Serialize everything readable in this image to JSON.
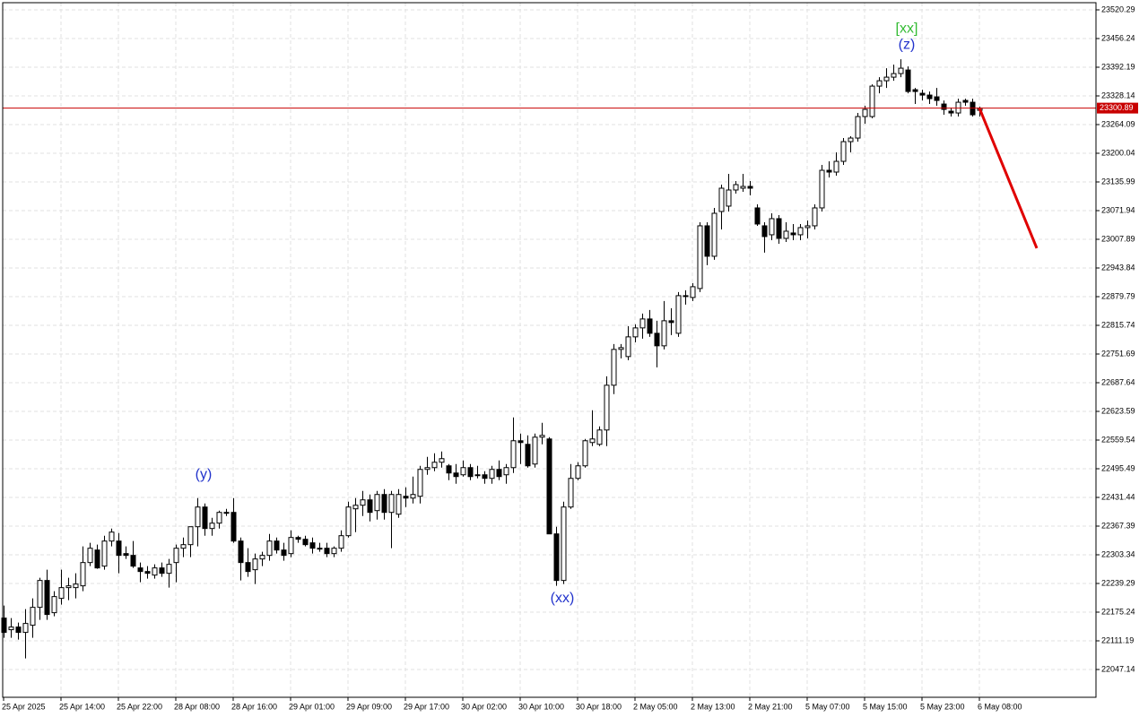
{
  "chart_data": {
    "type": "candlestick",
    "categories": [
      "25 Apr 2025",
      null,
      null,
      null,
      null,
      null,
      null,
      null,
      "25 Apr 14:00",
      null,
      null,
      null,
      null,
      null,
      null,
      null,
      "25 Apr 22:00",
      null,
      null,
      null,
      null,
      null,
      null,
      null,
      "28 Apr 08:00",
      null,
      null,
      null,
      null,
      null,
      null,
      null,
      "28 Apr 16:00",
      null,
      null,
      null,
      null,
      null,
      null,
      null,
      "29 Apr 01:00",
      null,
      null,
      null,
      null,
      null,
      null,
      null,
      "29 Apr 09:00",
      null,
      null,
      null,
      null,
      null,
      null,
      null,
      "29 Apr 17:00",
      null,
      null,
      null,
      null,
      null,
      null,
      null,
      "30 Apr 02:00",
      null,
      null,
      null,
      null,
      null,
      null,
      null,
      "30 Apr 10:00",
      null,
      null,
      null,
      null,
      null,
      null,
      null,
      "30 Apr 18:00",
      null,
      null,
      null,
      null,
      null,
      null,
      null,
      "2 May 05:00",
      null,
      null,
      null,
      null,
      null,
      null,
      null,
      "2 May 13:00",
      null,
      null,
      null,
      null,
      null,
      null,
      null,
      "2 May 21:00",
      null,
      null,
      null,
      null,
      null,
      null,
      null,
      "5 May 07:00",
      null,
      null,
      null,
      null,
      null,
      null,
      null,
      "5 May 15:00",
      null,
      null,
      null,
      null,
      null,
      null,
      null,
      "5 May 23:00",
      null,
      null,
      null,
      null,
      null,
      null,
      null,
      "6 May 08:00"
    ],
    "open": [
      22162,
      22136,
      22142,
      22130,
      22146,
      22186,
      22246,
      22174,
      22206,
      22230,
      22230,
      22234,
      22286,
      22314,
      22278,
      22334,
      22334,
      22306,
      22302,
      22274,
      22266,
      22258,
      22274,
      22262,
      22286,
      22318,
      22326,
      22366,
      22410,
      22362,
      22374,
      22398,
      22398,
      22334,
      22286,
      22270,
      22294,
      22302,
      22334,
      22314,
      22306,
      22342,
      22338,
      22330,
      22318,
      22318,
      22306,
      22318,
      22346,
      22406,
      22414,
      22426,
      22402,
      22438,
      22398,
      22394,
      22434,
      22430,
      22434,
      22494,
      22498,
      22510,
      22502,
      22486,
      22482,
      22498,
      22482,
      22482,
      22474,
      22494,
      22482,
      22498,
      22558,
      22550,
      22506,
      22566,
      22562,
      22350,
      22246,
      22410,
      22474,
      22502,
      22554,
      22550,
      22582,
      22682,
      22762,
      22746,
      22790,
      22810,
      22830,
      22798,
      22770,
      22826,
      22798,
      22882,
      22878,
      22898,
      23038,
      22970,
      23070,
      23082,
      23118,
      23122,
      23126,
      23078,
      23038,
      23018,
      23054,
      23010,
      23022,
      23018,
      23034,
      23038,
      23078,
      23162,
      23158,
      23182,
      23226,
      23234,
      23282,
      23282,
      23350,
      23362,
      23370,
      23378,
      23386,
      23342,
      23334,
      23330,
      23326,
      23310,
      23294,
      23290,
      23318,
      23314,
      23296
    ],
    "high": [
      22190,
      22162,
      22152,
      22182,
      22206,
      22252,
      22270,
      22222,
      22270,
      22252,
      22262,
      22322,
      22330,
      22326,
      22346,
      22362,
      22352,
      22322,
      22334,
      22286,
      22278,
      22282,
      22286,
      22294,
      22326,
      22342,
      22366,
      22430,
      22418,
      22386,
      22402,
      22406,
      22430,
      22342,
      22318,
      22306,
      22310,
      22350,
      22342,
      22330,
      22358,
      22346,
      22346,
      22342,
      22330,
      22330,
      22322,
      22358,
      22422,
      22430,
      22446,
      22438,
      22446,
      22450,
      22446,
      22450,
      22454,
      22478,
      22502,
      22522,
      22530,
      22534,
      22506,
      22506,
      22514,
      22506,
      22502,
      22490,
      22502,
      22514,
      22506,
      22610,
      22574,
      22570,
      22574,
      22598,
      22566,
      22366,
      22422,
      22506,
      22510,
      22562,
      22626,
      22590,
      22702,
      22774,
      22774,
      22814,
      22818,
      22842,
      22850,
      22826,
      22870,
      22854,
      22890,
      22894,
      22910,
      23046,
      23046,
      23078,
      23130,
      23154,
      23138,
      23154,
      23138,
      23086,
      23046,
      23066,
      23062,
      23046,
      23042,
      23042,
      23050,
      23086,
      23174,
      23182,
      23202,
      23234,
      23238,
      23290,
      23306,
      23354,
      23370,
      23390,
      23398,
      23410,
      23394,
      23346,
      23342,
      23338,
      23346,
      23318,
      23302,
      23322,
      23322,
      23322,
      23304
    ],
    "low": [
      22118,
      22118,
      22114,
      22072,
      22118,
      22158,
      22158,
      22166,
      22192,
      22202,
      22206,
      22222,
      22278,
      22272,
      22270,
      22322,
      22262,
      22294,
      22274,
      22242,
      22250,
      22250,
      22254,
      22230,
      22242,
      22298,
      22298,
      22322,
      22346,
      22346,
      22362,
      22390,
      22330,
      22246,
      22254,
      22238,
      22278,
      22290,
      22306,
      22290,
      22298,
      22330,
      22322,
      22306,
      22310,
      22298,
      22298,
      22310,
      22342,
      22354,
      22390,
      22378,
      22382,
      22382,
      22318,
      22386,
      22410,
      22418,
      22418,
      22482,
      22490,
      22498,
      22470,
      22462,
      22478,
      22470,
      22474,
      22462,
      22462,
      22470,
      22462,
      22486,
      22506,
      22498,
      22498,
      22550,
      22350,
      22234,
      22238,
      22406,
      22470,
      22498,
      22546,
      22546,
      22546,
      22662,
      22742,
      22738,
      22778,
      22786,
      22790,
      22722,
      22762,
      22794,
      22790,
      22862,
      22870,
      22890,
      22950,
      22962,
      23030,
      23070,
      23110,
      23114,
      23106,
      23038,
      22978,
      23006,
      22998,
      23002,
      23006,
      23006,
      23010,
      23030,
      23070,
      23146,
      23150,
      23174,
      23202,
      23226,
      23266,
      23278,
      23334,
      23346,
      23362,
      23370,
      23334,
      23310,
      23318,
      23310,
      23306,
      23286,
      23282,
      23282,
      23306,
      23282,
      23282
    ],
    "close": [
      22130,
      22142,
      22130,
      22150,
      22186,
      22246,
      22170,
      22210,
      22230,
      22234,
      22238,
      22286,
      22318,
      22274,
      22334,
      22354,
      22302,
      22302,
      22278,
      22266,
      22262,
      22274,
      22262,
      22282,
      22318,
      22326,
      22366,
      22410,
      22362,
      22374,
      22398,
      22398,
      22334,
      22286,
      22266,
      22294,
      22302,
      22334,
      22314,
      22302,
      22342,
      22338,
      22326,
      22318,
      22318,
      22306,
      22318,
      22346,
      22410,
      22414,
      22426,
      22398,
      22438,
      22398,
      22438,
      22438,
      22430,
      22438,
      22494,
      22498,
      22510,
      22518,
      22486,
      22478,
      22498,
      22478,
      22482,
      22474,
      22494,
      22478,
      22498,
      22558,
      22554,
      22502,
      22566,
      22570,
      22350,
      22246,
      22410,
      22474,
      22502,
      22558,
      22562,
      22582,
      22682,
      22762,
      22766,
      22790,
      22810,
      22830,
      22798,
      22770,
      22826,
      22822,
      22882,
      22882,
      22902,
      23038,
      22970,
      23066,
      23122,
      23118,
      23130,
      23126,
      23122,
      23042,
      23014,
      23054,
      23010,
      23026,
      23018,
      23034,
      23038,
      23078,
      23162,
      23158,
      23182,
      23226,
      23234,
      23282,
      23298,
      23350,
      23362,
      23370,
      23378,
      23390,
      23338,
      23338,
      23330,
      23322,
      23318,
      23298,
      23290,
      23314,
      23314,
      23286,
      23300.89
    ],
    "current_price": 23300.89,
    "current_price_color": "#c80000",
    "forecast": {
      "x": [
        136,
        144
      ],
      "values": [
        23300.89,
        22988
      ],
      "color": "#e00000"
    },
    "annotations": [
      {
        "text": "(y)",
        "color": "#2233cc"
      },
      {
        "text": "(xx)",
        "color": "#2233cc"
      },
      {
        "text": "(z)",
        "color": "#2233cc"
      },
      {
        "text": "[xx]",
        "color": "#33bb33"
      }
    ],
    "ylim": [
      21985.1,
      23536.3
    ],
    "yticks": [
      23520.29,
      23456.24,
      23392.19,
      23328.14,
      23264.09,
      23200.04,
      23135.99,
      23071.94,
      23007.89,
      22943.84,
      22879.79,
      22815.74,
      22751.69,
      22687.64,
      22623.59,
      22559.54,
      22495.49,
      22431.44,
      22367.39,
      22303.34,
      22239.29,
      22175.24,
      22111.19,
      22047.14
    ],
    "grid": true
  }
}
